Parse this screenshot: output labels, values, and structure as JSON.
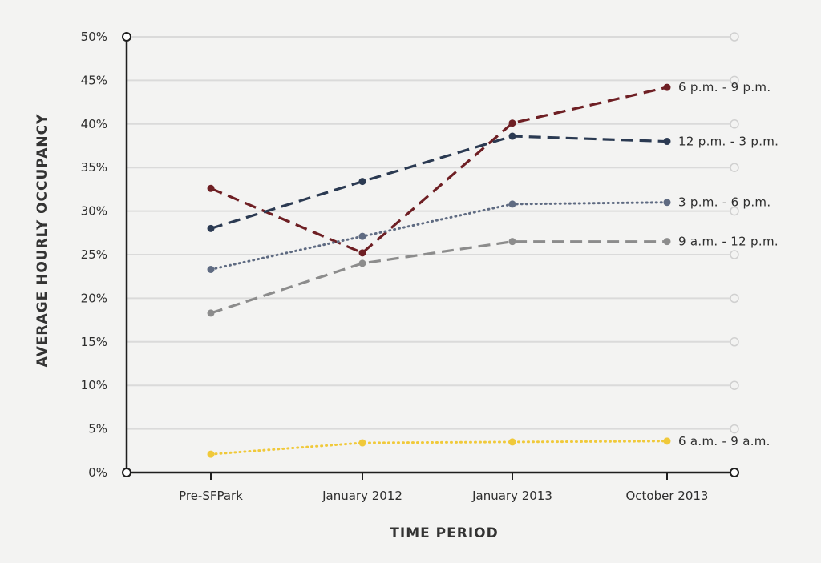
{
  "chart_data": {
    "type": "line",
    "xlabel": "TIME PERIOD",
    "ylabel": "AVERAGE HOURLY OCCUPANCY",
    "categories": [
      "Pre-SFPark",
      "January 2012",
      "January 2013",
      "October 2013"
    ],
    "ylim": [
      0,
      50
    ],
    "yticks": [
      {
        "value": 0,
        "label": "0%"
      },
      {
        "value": 5,
        "label": "5%"
      },
      {
        "value": 10,
        "label": "10%"
      },
      {
        "value": 15,
        "label": "15%"
      },
      {
        "value": 20,
        "label": "20%"
      },
      {
        "value": 25,
        "label": "25%"
      },
      {
        "value": 30,
        "label": "30%"
      },
      {
        "value": 35,
        "label": "35%"
      },
      {
        "value": 40,
        "label": "40%"
      },
      {
        "value": 45,
        "label": "45%"
      },
      {
        "value": 50,
        "label": "50%"
      }
    ],
    "grid": true,
    "series": [
      {
        "name": "6 p.m. - 9 p.m.",
        "values": [
          32.6,
          25.2,
          40.1,
          44.2
        ],
        "color": "#6e1f24",
        "dash": "dashed"
      },
      {
        "name": "12 p.m. - 3 p.m.",
        "values": [
          28.0,
          33.4,
          38.6,
          38.0
        ],
        "color": "#2b3a52",
        "dash": "dashed"
      },
      {
        "name": "3 p.m. - 6 p.m.",
        "values": [
          23.3,
          27.1,
          30.8,
          31.0
        ],
        "color": "#5f6b82",
        "dash": "dotted"
      },
      {
        "name": "9 a.m. - 12 p.m.",
        "values": [
          18.3,
          24.0,
          26.5,
          26.5
        ],
        "color": "#8c8c8c",
        "dash": "dashed"
      },
      {
        "name": "6 a.m. - 9 a.m.",
        "values": [
          2.1,
          3.4,
          3.5,
          3.6
        ],
        "color": "#f0c93a",
        "dash": "dotted"
      }
    ]
  }
}
